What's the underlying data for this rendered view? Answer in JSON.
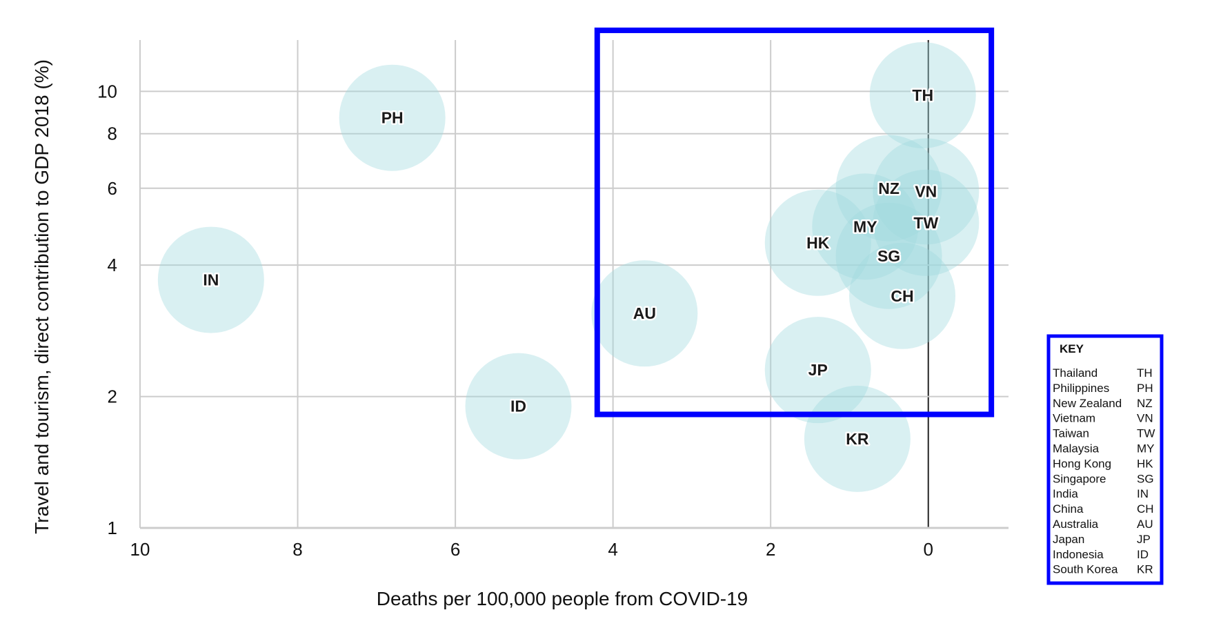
{
  "colors": {
    "bubble": "#9fd9df",
    "highlight": "#0000ff",
    "grid": "#cccccc",
    "zero_line": "#222222"
  },
  "chart_data": {
    "type": "scatter",
    "xlabel": "Deaths per 100,000 people from COVID-19",
    "ylabel": "Travel and tourism, direct contribution to GDP 2018 (%)",
    "x_axis": {
      "reversed": true,
      "xlim": [
        10,
        -1
      ],
      "ticks": [
        10,
        8,
        6,
        4,
        2,
        0
      ]
    },
    "y_axis": {
      "scale": "log",
      "ylim": [
        1,
        14
      ],
      "ticks": [
        1,
        2,
        4,
        6,
        8,
        10
      ]
    },
    "grid": true,
    "points": [
      {
        "code": "TH",
        "x": 0.07,
        "y": 9.8
      },
      {
        "code": "PH",
        "x": 6.8,
        "y": 8.7
      },
      {
        "code": "NZ",
        "x": 0.5,
        "y": 6.0
      },
      {
        "code": "VN",
        "x": 0.03,
        "y": 5.9
      },
      {
        "code": "TW",
        "x": 0.03,
        "y": 5.0
      },
      {
        "code": "MY",
        "x": 0.8,
        "y": 4.9
      },
      {
        "code": "HK",
        "x": 1.4,
        "y": 4.5
      },
      {
        "code": "SG",
        "x": 0.5,
        "y": 4.2
      },
      {
        "code": "IN",
        "x": 9.1,
        "y": 3.7
      },
      {
        "code": "CH",
        "x": 0.33,
        "y": 3.4
      },
      {
        "code": "AU",
        "x": 3.6,
        "y": 3.1
      },
      {
        "code": "JP",
        "x": 1.4,
        "y": 2.3
      },
      {
        "code": "ID",
        "x": 5.2,
        "y": 1.9
      },
      {
        "code": "KR",
        "x": 0.9,
        "y": 1.6
      }
    ],
    "highlight_region": {
      "x_from": 4.2,
      "x_to": -0.8,
      "y_from": 1.82,
      "y_to": 13.8
    }
  },
  "key": {
    "title": "KEY",
    "entries": [
      {
        "name": "Thailand",
        "code": "TH"
      },
      {
        "name": "Philippines",
        "code": "PH"
      },
      {
        "name": "New Zealand",
        "code": "NZ"
      },
      {
        "name": "Vietnam",
        "code": "VN"
      },
      {
        "name": "Taiwan",
        "code": "TW"
      },
      {
        "name": "Malaysia",
        "code": "MY"
      },
      {
        "name": "Hong Kong",
        "code": "HK"
      },
      {
        "name": "Singapore",
        "code": "SG"
      },
      {
        "name": "India",
        "code": "IN"
      },
      {
        "name": "China",
        "code": "CH"
      },
      {
        "name": "Australia",
        "code": "AU"
      },
      {
        "name": "Japan",
        "code": "JP"
      },
      {
        "name": "Indonesia",
        "code": "ID"
      },
      {
        "name": "South Korea",
        "code": "KR"
      }
    ]
  }
}
